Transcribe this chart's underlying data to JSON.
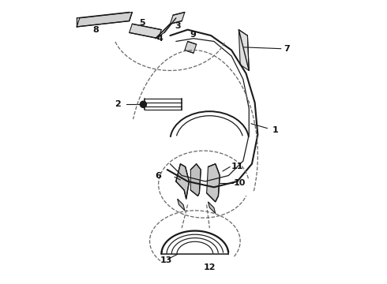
{
  "background_color": "#ffffff",
  "line_color": "#1a1a1a",
  "dashed_color": "#666666",
  "label_color": "#111111",
  "fig_width": 4.9,
  "fig_height": 3.6,
  "dpi": 100
}
